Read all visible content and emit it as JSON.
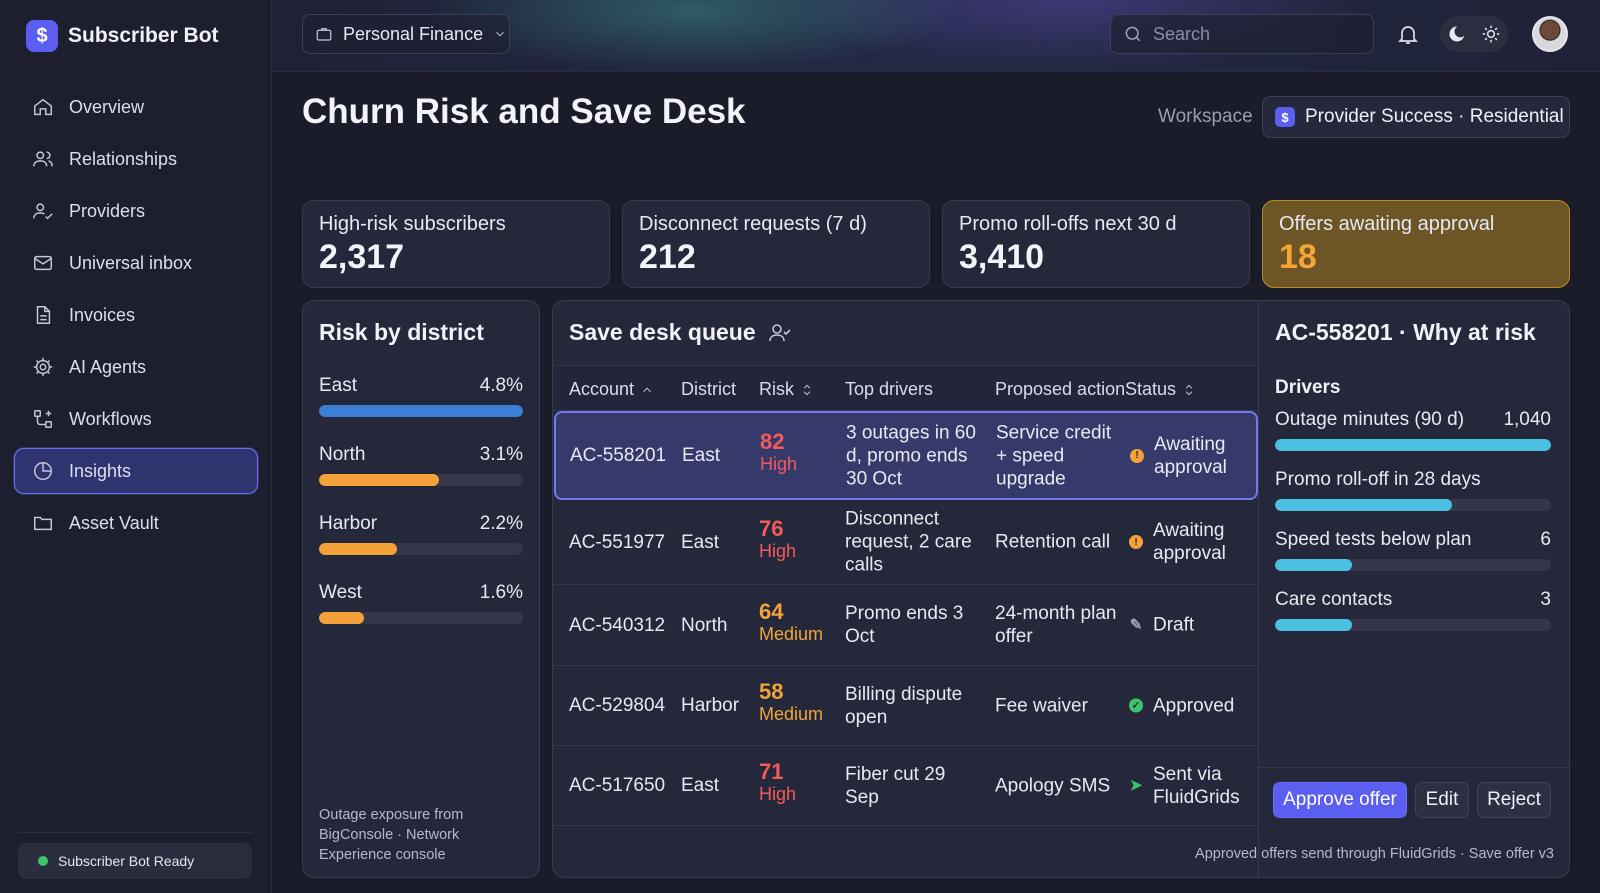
{
  "app": {
    "name": "Subscriber Bot",
    "logo_glyph": "$"
  },
  "sidebar": {
    "items": [
      {
        "label": "Overview",
        "icon": "home-icon"
      },
      {
        "label": "Relationships",
        "icon": "users-icon"
      },
      {
        "label": "Providers",
        "icon": "provider-icon"
      },
      {
        "label": "Universal inbox",
        "icon": "mail-icon"
      },
      {
        "label": "Invoices",
        "icon": "document-icon"
      },
      {
        "label": "AI Agents",
        "icon": "gear-icon"
      },
      {
        "label": "Workflows",
        "icon": "workflow-icon"
      },
      {
        "label": "Insights",
        "icon": "pie-chart-icon",
        "active": true
      },
      {
        "label": "Asset Vault",
        "icon": "folder-icon"
      }
    ],
    "status": "Subscriber Bot Ready"
  },
  "topbar": {
    "workspace_switch": "Personal Finance",
    "search_placeholder": "Search"
  },
  "header": {
    "title": "Churn Risk and Save Desk",
    "workspace_label": "Workspace",
    "workspace_value": "Provider Success · Residential"
  },
  "kpis": [
    {
      "label": "High-risk subscribers",
      "value": "2,317"
    },
    {
      "label": "Disconnect requests (7 d)",
      "value": "212"
    },
    {
      "label": "Promo roll-offs next 30 d",
      "value": "3,410"
    },
    {
      "label": "Offers awaiting approval",
      "value": "18",
      "highlight": true
    }
  ],
  "district_panel": {
    "title": "Risk by district",
    "rows": [
      {
        "name": "East",
        "value": "4.8%",
        "fraction": 1.0,
        "color": "#3b7fd6"
      },
      {
        "name": "North",
        "value": "3.1%",
        "fraction": 0.59,
        "color": "#f4a13a"
      },
      {
        "name": "Harbor",
        "value": "2.2%",
        "fraction": 0.38,
        "color": "#f4a13a"
      },
      {
        "name": "West",
        "value": "1.6%",
        "fraction": 0.22,
        "color": "#f4a13a"
      }
    ],
    "note": "Outage exposure from BigConsole · Network Experience console"
  },
  "queue": {
    "title": "Save desk queue",
    "columns": [
      "Account",
      "District",
      "Risk",
      "Top drivers",
      "Proposed action",
      "Status"
    ],
    "rows": [
      {
        "account": "AC-558201",
        "district": "East",
        "risk": "82",
        "level": "High",
        "drivers": "3 outages in 60 d, promo ends 30 Oct",
        "action": "Service credit + speed upgrade",
        "status": "Awaiting approval",
        "status_icon": "info-icon",
        "status_color": "#f4a13a",
        "selected": true
      },
      {
        "account": "AC-551977",
        "district": "East",
        "risk": "76",
        "level": "High",
        "drivers": "Disconnect request, 2 care calls",
        "action": "Retention call",
        "status": "Awaiting approval",
        "status_icon": "info-icon",
        "status_color": "#f4a13a"
      },
      {
        "account": "AC-540312",
        "district": "North",
        "risk": "64",
        "level": "Medium",
        "drivers": "Promo ends 3 Oct",
        "action": "24-month plan offer",
        "status": "Draft",
        "status_icon": "pencil-icon",
        "status_color": "#9aa0b5"
      },
      {
        "account": "AC-529804",
        "district": "Harbor",
        "risk": "58",
        "level": "Medium",
        "drivers": "Billing dispute open",
        "action": "Fee waiver",
        "status": "Approved",
        "status_icon": "check-circle-icon",
        "status_color": "#3cc46b"
      },
      {
        "account": "AC-517650",
        "district": "East",
        "risk": "71",
        "level": "High",
        "drivers": "Fiber cut 29 Sep",
        "action": "Apology SMS",
        "status": "Sent via FluidGrids",
        "status_icon": "send-icon",
        "status_color": "#3cc46b"
      }
    ],
    "footnote": "Approved offers send through FluidGrids · Save offer v3"
  },
  "detail": {
    "title": "AC-558201 · Why at risk",
    "drivers_label": "Drivers",
    "drivers": [
      {
        "name": "Outage minutes (90 d)",
        "value": "1,040",
        "fraction": 1.0
      },
      {
        "name": "Promo roll-off in 28 days",
        "value": "",
        "fraction": 0.64
      },
      {
        "name": "Speed tests below plan",
        "value": "6",
        "fraction": 0.28
      },
      {
        "name": "Care contacts",
        "value": "3",
        "fraction": 0.28
      }
    ],
    "buttons": {
      "approve": "Approve offer",
      "edit": "Edit",
      "reject": "Reject"
    }
  }
}
